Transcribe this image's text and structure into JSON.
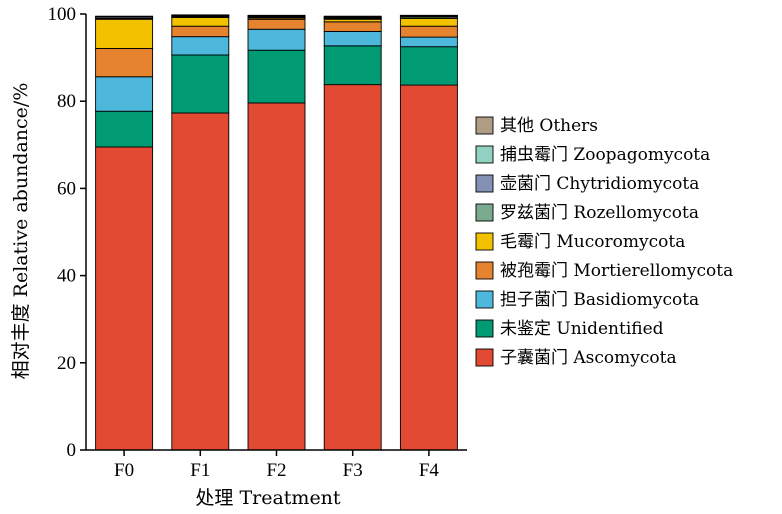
{
  "chart_data": {
    "type": "bar",
    "stacked": true,
    "xlabel": "处理 Treatment",
    "ylabel": "相对丰度 Relative abundance/%",
    "ylim": [
      0,
      100
    ],
    "yticks": [
      0,
      20,
      40,
      60,
      80,
      100
    ],
    "categories": [
      "F0",
      "F1",
      "F2",
      "F3",
      "F4"
    ],
    "legend_position": "right",
    "series": [
      {
        "name": "子囊菌门 Ascomycota",
        "color": "#e34a33",
        "values": [
          69.5,
          77.3,
          79.6,
          83.8,
          83.7
        ]
      },
      {
        "name": "未鉴定 Unidentified",
        "color": "#009a73",
        "values": [
          8.2,
          13.3,
          12.1,
          8.9,
          8.8
        ]
      },
      {
        "name": "担子菌门 Basidiomycota",
        "color": "#4db8db",
        "values": [
          7.9,
          4.2,
          4.8,
          3.3,
          2.2
        ]
      },
      {
        "name": "被孢霉门 Mortierellomycota",
        "color": "#e5832e",
        "values": [
          6.5,
          2.4,
          2.3,
          2.2,
          2.5
        ]
      },
      {
        "name": "毛霉门 Mucoromycota",
        "color": "#f2c200",
        "values": [
          6.7,
          2.0,
          0.3,
          0.6,
          1.8
        ]
      },
      {
        "name": "罗兹菌门 Rozellomycota",
        "color": "#7aab8e",
        "values": [
          0.2,
          0.2,
          0.2,
          0.2,
          0.3
        ]
      },
      {
        "name": "壶菌门 Chytridiomycota",
        "color": "#8491b4",
        "values": [
          0.3,
          0.2,
          0.2,
          0.2,
          0.2
        ]
      },
      {
        "name": "捕虫霉门 Zoopagomycota",
        "color": "#91d1c2",
        "values": [
          0.1,
          0.1,
          0.1,
          0.1,
          0.1
        ]
      },
      {
        "name": "其他 Others",
        "color": "#b09c85",
        "values": [
          0.1,
          0.1,
          0.1,
          0.2,
          0.1
        ]
      }
    ]
  }
}
